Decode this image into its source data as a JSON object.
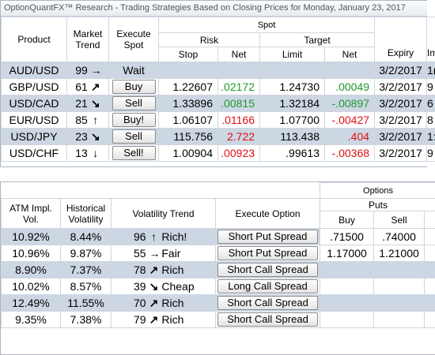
{
  "top": {
    "title": "OptionQuantFX™ Research - Trading Strategies Based on Closing Prices for Monday, January 23, 2017",
    "headers": {
      "product": "Product",
      "market_trend": "Market Trend",
      "execute_spot": "Execute Spot",
      "spot": "Spot",
      "risk": "Risk",
      "target": "Target",
      "expiry": "Expiry",
      "stop": "Stop",
      "risk_net": "Net",
      "limit": "Limit",
      "target_net": "Net",
      "cut": "Im"
    },
    "rows": [
      {
        "product": "AUD/USD",
        "trend": "99",
        "arrow": "→",
        "action": "Wait",
        "stop": "",
        "risk_net": "",
        "limit": "",
        "target_net": "",
        "expiry": "3/2/2017",
        "cut": "1("
      },
      {
        "product": "GBP/USD",
        "trend": "61",
        "arrow": "↗",
        "action": "Buy",
        "stop": "1.22607",
        "risk_net": ".02172",
        "limit": "1.24730",
        "target_net": ".00049",
        "expiry": "3/2/2017",
        "cut": "9"
      },
      {
        "product": "USD/CAD",
        "trend": "21",
        "arrow": "↘",
        "action": "Sell",
        "stop": "1.33896",
        "risk_net": ".00815",
        "limit": "1.32184",
        "target_net": "-.00897",
        "expiry": "3/2/2017",
        "cut": "6"
      },
      {
        "product": "EUR/USD",
        "trend": "85",
        "arrow": "↑",
        "action": "Buy!",
        "stop": "1.06107",
        "risk_net": ".01166",
        "limit": "1.07700",
        "target_net": "-.00427",
        "expiry": "3/2/2017",
        "cut": "8"
      },
      {
        "product": "USD/JPY",
        "trend": "23",
        "arrow": "↘",
        "action": "Sell",
        "stop": "115.756",
        "risk_net": "2.722",
        "limit": "113.438",
        "target_net": ".404",
        "expiry": "3/2/2017",
        "cut": "1:"
      },
      {
        "product": "USD/CHF",
        "trend": "13",
        "arrow": "↓",
        "action": "Sell!",
        "stop": "1.00904",
        "risk_net": ".00923",
        "limit": ".99613",
        "target_net": "-.00368",
        "expiry": "3/2/2017",
        "cut": "9"
      }
    ]
  },
  "bottom": {
    "headers": {
      "options": "Options",
      "puts": "Puts",
      "atm": "ATM Impl. Vol.",
      "hist": "Historical Volatility",
      "vol_trend": "Volatility Trend",
      "exec_option": "Execute Option",
      "buy": "Buy",
      "sell": "Sell"
    },
    "rows": [
      {
        "atm": "10.92%",
        "hist": "8.44%",
        "vt": "96",
        "arrow": "↑",
        "label": "Rich!",
        "action": "Short Put Spread",
        "buy": ".71500",
        "sell": ".74000"
      },
      {
        "atm": "10.96%",
        "hist": "9.87%",
        "vt": "55",
        "arrow": "→",
        "label": "Fair",
        "action": "Short Put Spread",
        "buy": "1.17000",
        "sell": "1.21000"
      },
      {
        "atm": "8.90%",
        "hist": "7.37%",
        "vt": "78",
        "arrow": "↗",
        "label": "Rich",
        "action": "Short Call Spread",
        "buy": "",
        "sell": ""
      },
      {
        "atm": "10.02%",
        "hist": "8.57%",
        "vt": "39",
        "arrow": "↘",
        "label": "Cheap",
        "action": "Long Call Spread",
        "buy": "",
        "sell": ""
      },
      {
        "atm": "12.49%",
        "hist": "11.55%",
        "vt": "70",
        "arrow": "↗",
        "label": "Rich",
        "action": "Short Call Spread",
        "buy": "",
        "sell": ""
      },
      {
        "atm": "9.35%",
        "hist": "7.38%",
        "vt": "79",
        "arrow": "↗",
        "label": "Rich",
        "action": "Short Call Spread",
        "buy": "",
        "sell": ""
      }
    ]
  },
  "colors": {
    "positive": "#1f9a2a",
    "negative": "#e01010",
    "row_highlight": "#ccd7e3"
  }
}
